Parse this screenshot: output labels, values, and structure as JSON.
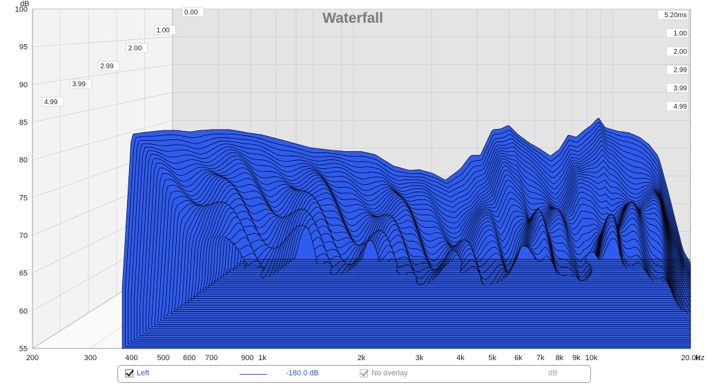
{
  "chart_data": {
    "type": "waterfall",
    "title": "Waterfall",
    "y_unit_label": "dB",
    "x_unit_label": "Hz",
    "ylim": [
      55,
      100
    ],
    "y_ticks": [
      "100",
      "95",
      "90",
      "85",
      "80",
      "75",
      "70",
      "65",
      "60",
      "55"
    ],
    "x_scale": "log",
    "xlim": [
      200,
      20000
    ],
    "x_ticks": [
      {
        "value": 200,
        "label": "200"
      },
      {
        "value": 300,
        "label": "300"
      },
      {
        "value": 400,
        "label": "400"
      },
      {
        "value": 500,
        "label": "500"
      },
      {
        "value": 600,
        "label": "600"
      },
      {
        "value": 700,
        "label": "700"
      },
      {
        "value": 900,
        "label": "900"
      },
      {
        "value": 1000,
        "label": "1k"
      },
      {
        "value": 2000,
        "label": "2k"
      },
      {
        "value": 3000,
        "label": "3k"
      },
      {
        "value": 4000,
        "label": "4k"
      },
      {
        "value": 5000,
        "label": "5k"
      },
      {
        "value": 6000,
        "label": "6k"
      },
      {
        "value": 7000,
        "label": "7k"
      },
      {
        "value": 8000,
        "label": "8k"
      },
      {
        "value": 9000,
        "label": "9k"
      },
      {
        "value": 10000,
        "label": "10k"
      },
      {
        "value": 20000,
        "label": "20.0k"
      }
    ],
    "time_axis_left": [
      "0.00",
      "1.00",
      "2.00",
      "2.99",
      "3.99",
      "4.99"
    ],
    "time_axis_right": [
      "5.20ms",
      "1.00",
      "2.00",
      "2.99",
      "3.99",
      "4.99"
    ],
    "time_range_ms": [
      0,
      5.2
    ],
    "fill_color": "#2f5cf0",
    "outline_color": "#000000",
    "first_slice": {
      "freq_hz": [
        375,
        400,
        450,
        500,
        550,
        600,
        650,
        700,
        800,
        900,
        1000,
        1200,
        1400,
        1600,
        1800,
        2000,
        2200,
        2500,
        2800,
        3000,
        3300,
        3600,
        4000,
        4300,
        4600,
        5000,
        5300,
        5600,
        6000,
        6500,
        7000,
        7500,
        8000,
        8500,
        9000,
        9500,
        10000,
        10500,
        11000,
        12000,
        13000,
        14000,
        15000,
        16000,
        17000,
        18000,
        19000,
        20000
      ],
      "db": [
        63.0,
        83.4,
        83.7,
        83.9,
        83.9,
        83.7,
        83.9,
        84.0,
        84.0,
        83.6,
        83.3,
        82.4,
        81.6,
        81.3,
        81.1,
        81.1,
        80.7,
        79.2,
        78.6,
        78.7,
        78.2,
        77.3,
        78.8,
        80.6,
        80.6,
        84.0,
        84.1,
        84.6,
        83.3,
        82.2,
        81.4,
        80.5,
        81.4,
        83.3,
        83.0,
        83.9,
        84.6,
        85.6,
        84.3,
        83.8,
        83.6,
        83.0,
        82.0,
        80.4,
        76.3,
        72.0,
        68.0,
        66.3
      ]
    }
  },
  "legend": {
    "channel": "Left",
    "line_value": "-180.0 dB",
    "overlay": "No overlay",
    "overlay_unit": "dB"
  }
}
